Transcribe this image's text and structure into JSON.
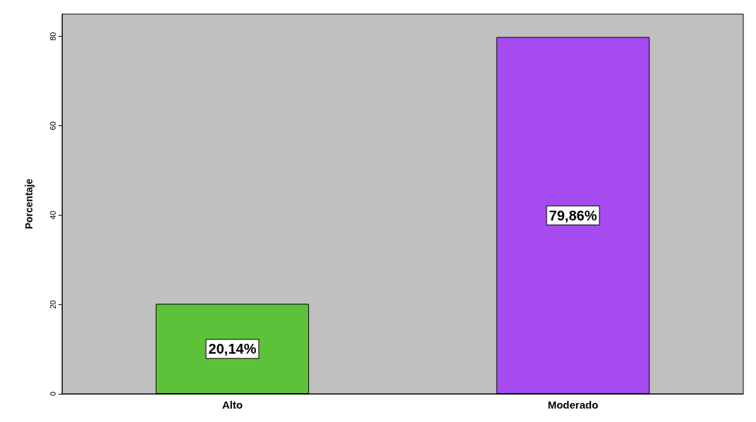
{
  "chart_data": {
    "type": "bar",
    "ylabel": "Porcentaje",
    "categories": [
      "Alto",
      "Moderado"
    ],
    "values": [
      20.14,
      79.86
    ],
    "colors": [
      "#5ec13a",
      "#a64bf0"
    ],
    "value_labels": [
      "20,14%",
      "79,86%"
    ],
    "ylim": [
      0,
      85
    ],
    "yticks": [
      0,
      20,
      40,
      60,
      80
    ],
    "grid": false
  }
}
